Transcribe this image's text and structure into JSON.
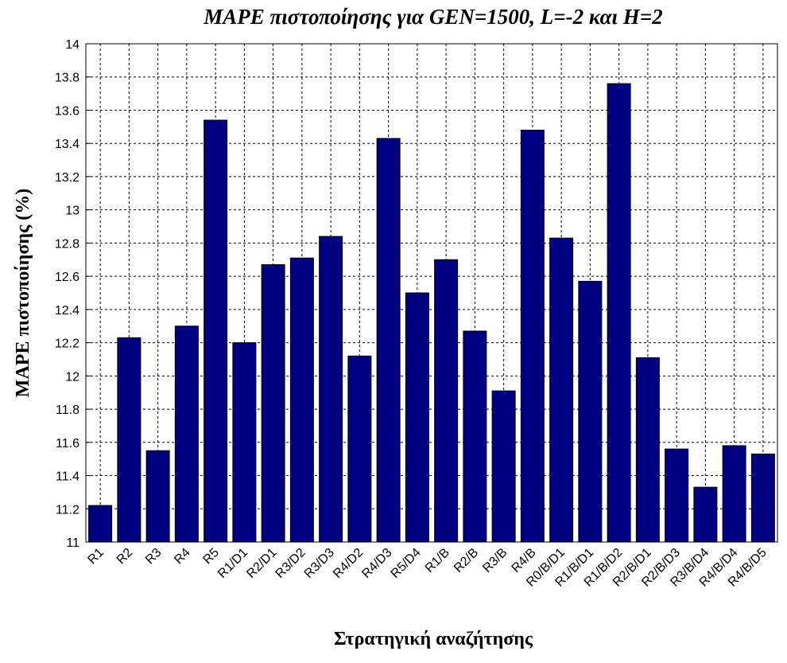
{
  "chart_data": {
    "type": "bar",
    "title": "MAPE πιστοποίησης για GEN=1500, L=-2 και H=2",
    "x_label": "Στρατηγική αναζήτησης",
    "y_label": "MAPE πιστοποίησης (%)",
    "categories": [
      "R1",
      "R2",
      "R3",
      "R4",
      "R5",
      "R1/D1",
      "R2/D1",
      "R3/D2",
      "R3/D3",
      "R4/D2",
      "R4/D3",
      "R5/D4",
      "R1/B",
      "R2/B",
      "R3/B",
      "R4/B",
      "R0/B/D1",
      "R1/B/D1",
      "R1/B/D2",
      "R2/B/D1",
      "R2/B/D3",
      "R3/B/D4",
      "R4/B/D4",
      "R4/B/D5"
    ],
    "values": [
      11.22,
      12.23,
      11.55,
      12.3,
      13.54,
      12.2,
      12.67,
      12.71,
      12.84,
      12.12,
      13.43,
      12.5,
      12.7,
      12.27,
      11.91,
      13.48,
      12.83,
      12.57,
      13.76,
      12.11,
      11.56,
      11.33,
      11.58,
      11.53
    ],
    "color": "#000080",
    "ylim": [
      11,
      14
    ],
    "yticks": [
      11,
      11.2,
      11.4,
      11.6,
      11.8,
      12,
      12.2,
      12.4,
      12.6,
      12.8,
      13,
      13.2,
      13.4,
      13.6,
      13.8,
      14
    ],
    "grid": true
  }
}
